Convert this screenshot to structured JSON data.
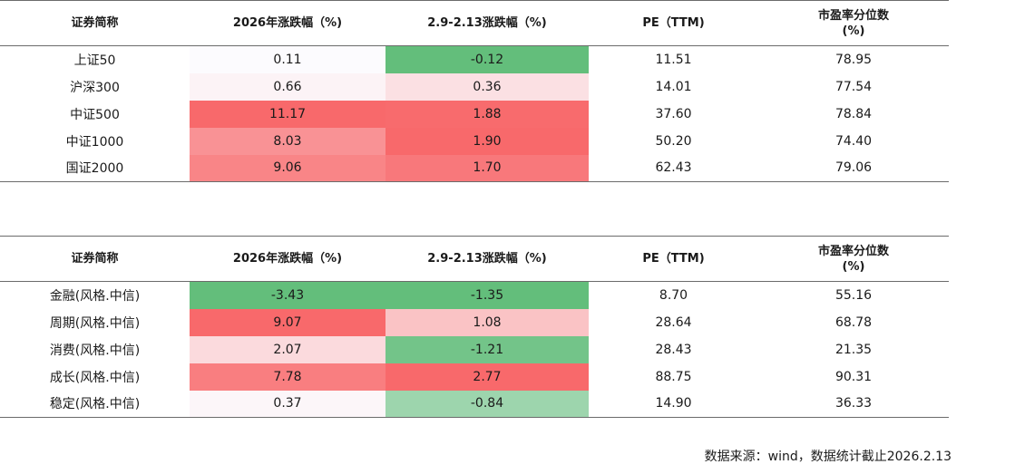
{
  "columns": [
    "证券简称",
    "2026年涨跌幅（%)",
    "2.9-2.13涨跌幅（%)",
    "PE（TTM)",
    "市盈率分位数\n(%)"
  ],
  "colors": {
    "positive": "#f8696b",
    "negative": "#63be7b",
    "neutral": "#fcfcff"
  },
  "chart_data": [
    {
      "type": "table",
      "columns": [
        "证券简称",
        "2026年涨跌幅（%)",
        "2.9-2.13涨跌幅（%)",
        "PE（TTM)",
        "市盈率分位数\n(%)"
      ],
      "rows": [
        {
          "name": "上证50",
          "ytd": "0.11",
          "week": "-0.12",
          "pe": "11.51",
          "pct": "78.95"
        },
        {
          "name": "沪深300",
          "ytd": "0.66",
          "week": "0.36",
          "pe": "14.01",
          "pct": "77.54"
        },
        {
          "name": "中证500",
          "ytd": "11.17",
          "week": "1.88",
          "pe": "37.60",
          "pct": "78.84"
        },
        {
          "name": "中证1000",
          "ytd": "8.03",
          "week": "1.90",
          "pe": "50.20",
          "pct": "74.40"
        },
        {
          "name": "国证2000",
          "ytd": "9.06",
          "week": "1.70",
          "pe": "62.43",
          "pct": "79.06"
        }
      ]
    },
    {
      "type": "table",
      "columns": [
        "证券简称",
        "2026年涨跌幅（%)",
        "2.9-2.13涨跌幅（%)",
        "PE（TTM)",
        "市盈率分位数\n(%)"
      ],
      "rows": [
        {
          "name": "金融(风格.中信)",
          "ytd": "-3.43",
          "week": "-1.35",
          "pe": "8.70",
          "pct": "55.16"
        },
        {
          "name": "周期(风格.中信)",
          "ytd": "9.07",
          "week": "1.08",
          "pe": "28.64",
          "pct": "68.78"
        },
        {
          "name": "消费(风格.中信)",
          "ytd": "2.07",
          "week": "-1.21",
          "pe": "28.43",
          "pct": "21.35"
        },
        {
          "name": "成长(风格.中信)",
          "ytd": "7.78",
          "week": "2.77",
          "pe": "88.75",
          "pct": "90.31"
        },
        {
          "name": "稳定(风格.中信)",
          "ytd": "0.37",
          "week": "-0.84",
          "pe": "14.90",
          "pct": "36.33"
        }
      ]
    }
  ],
  "footnote": "数据来源：wind，数据统计截止2026.2.13"
}
